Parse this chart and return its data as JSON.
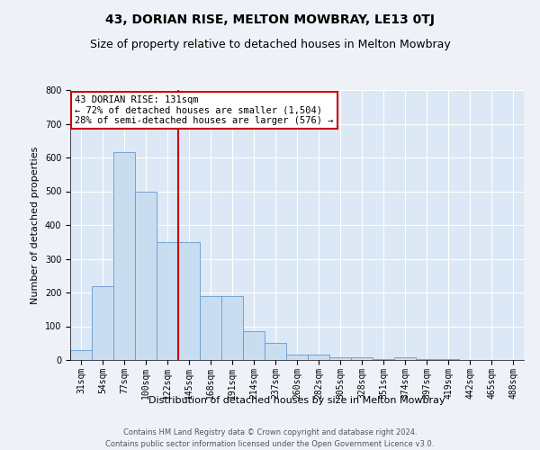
{
  "title": "43, DORIAN RISE, MELTON MOWBRAY, LE13 0TJ",
  "subtitle": "Size of property relative to detached houses in Melton Mowbray",
  "xlabel": "Distribution of detached houses by size in Melton Mowbray",
  "ylabel": "Number of detached properties",
  "categories": [
    "31sqm",
    "54sqm",
    "77sqm",
    "100sqm",
    "122sqm",
    "145sqm",
    "168sqm",
    "191sqm",
    "214sqm",
    "237sqm",
    "260sqm",
    "282sqm",
    "305sqm",
    "328sqm",
    "351sqm",
    "374sqm",
    "397sqm",
    "419sqm",
    "442sqm",
    "465sqm",
    "488sqm"
  ],
  "bar_values": [
    30,
    220,
    615,
    500,
    350,
    350,
    190,
    190,
    85,
    50,
    17,
    15,
    8,
    8,
    3,
    8,
    3,
    3,
    0,
    0,
    0
  ],
  "bar_color": "#c9ddf0",
  "bar_edge_color": "#6699cc",
  "vline_color": "#cc0000",
  "vline_x": 4.5,
  "annotation_text_line1": "43 DORIAN RISE: 131sqm",
  "annotation_text_line2": "← 72% of detached houses are smaller (1,504)",
  "annotation_text_line3": "28% of semi-detached houses are larger (576) →",
  "annotation_box_facecolor": "#ffffff",
  "annotation_box_edgecolor": "#cc0000",
  "fig_facecolor": "#eef2f8",
  "ax_facecolor": "#dce8f5",
  "ylim": [
    0,
    800
  ],
  "yticks": [
    0,
    100,
    200,
    300,
    400,
    500,
    600,
    700,
    800
  ],
  "grid_color": "#ffffff",
  "footer_line1": "Contains HM Land Registry data © Crown copyright and database right 2024.",
  "footer_line2": "Contains public sector information licensed under the Open Government Licence v3.0.",
  "title_fontsize": 10,
  "subtitle_fontsize": 9,
  "annot_fontsize": 7.5,
  "xlabel_fontsize": 8,
  "ylabel_fontsize": 8,
  "tick_fontsize": 7,
  "footer_fontsize": 6
}
